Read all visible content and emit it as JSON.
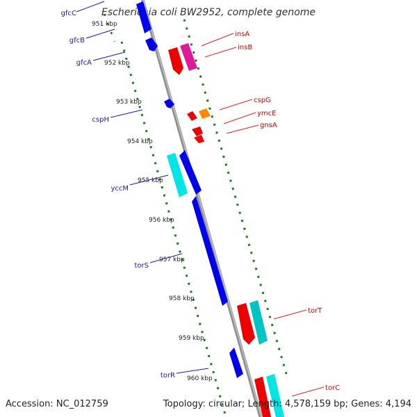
{
  "title": "Escherichia coli BW2952, complete genome",
  "footer": {
    "accession": "Accession: NC_012759",
    "topology": "Topology: circular; Length: 4,578,159 bp; Genes: 4,194"
  },
  "ticks": [
    "951 kbp",
    "952 kbp",
    "953 kbp",
    "954 kbp",
    "955 kbp",
    "956 kbp",
    "957 kbp",
    "958 kbp",
    "959 kbp",
    "960 kbp"
  ],
  "labels_left": [
    "gfcC",
    "gfcB",
    "gfcA",
    "cspH",
    "yccM",
    "torS",
    "torR"
  ],
  "labels_right": [
    "insA",
    "insB",
    "cspG",
    "ymcE",
    "gnsA",
    "torT",
    "torC"
  ],
  "colors": {
    "backbone": "#909090",
    "left_text": "#1a1aa6",
    "right_text": "#cc0000",
    "tick_dots": "#1b7a1b",
    "blue": "#0000ee",
    "red": "#ee0000",
    "magenta": "#e0189a",
    "orange": "#ff8800",
    "cyan": "#00e5e5"
  }
}
